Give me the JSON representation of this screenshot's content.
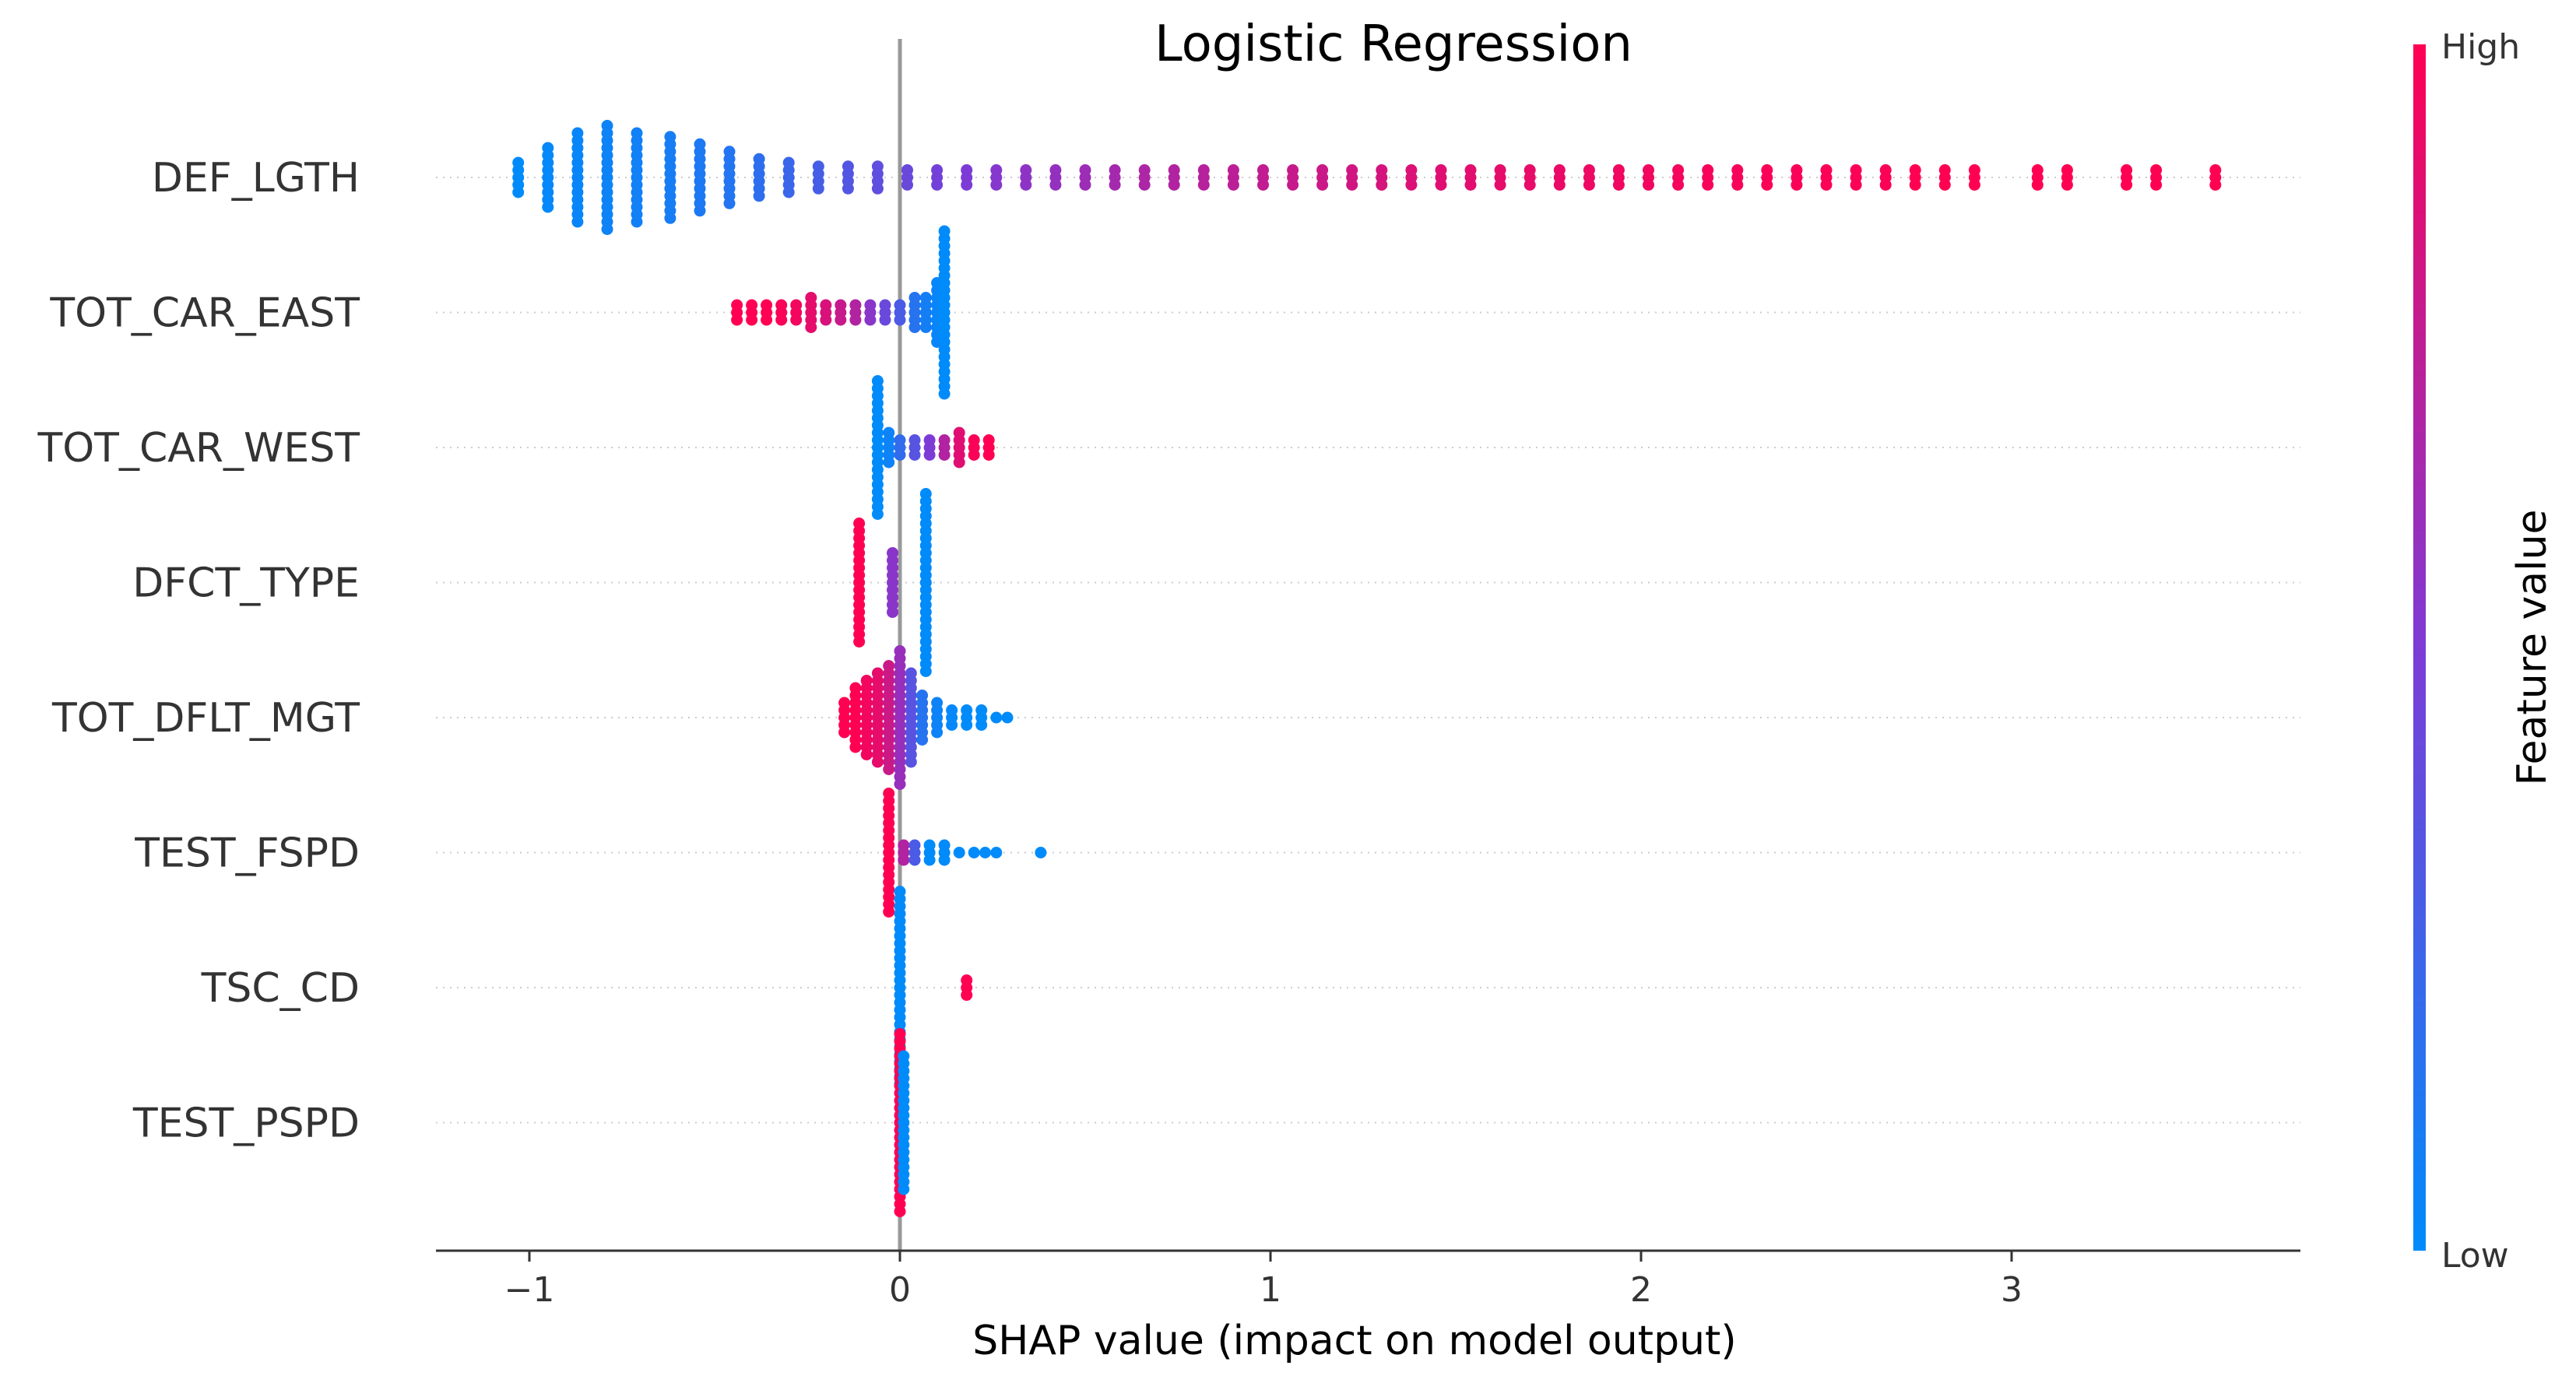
{
  "chart_data": {
    "type": "scatter",
    "subtype": "shap-beeswarm",
    "title": "Logistic Regression",
    "xlabel": "SHAP value (impact on model output)",
    "ylabel": "",
    "xlim": [
      -1.26,
      3.76
    ],
    "xticks": [
      -1,
      0,
      1,
      2,
      3
    ],
    "xtick_labels": [
      "−1",
      "0",
      "1",
      "2",
      "3"
    ],
    "zero_line": 0,
    "grid": "dotted horizontal per feature",
    "colorbar": {
      "label": "Feature value",
      "high_label": "High",
      "low_label": "Low",
      "low_color": "#008bfb",
      "mid_color": "#7d3bd6",
      "high_color": "#ff0052"
    },
    "features": [
      {
        "name": "DEF_LGTH",
        "points": [
          {
            "x": -1.03,
            "c": 0.0,
            "n": 5
          },
          {
            "x": -0.95,
            "c": 0.02,
            "n": 9
          },
          {
            "x": -0.87,
            "c": 0.03,
            "n": 13
          },
          {
            "x": -0.79,
            "c": 0.05,
            "n": 15
          },
          {
            "x": -0.71,
            "c": 0.07,
            "n": 13
          },
          {
            "x": -0.62,
            "c": 0.09,
            "n": 12
          },
          {
            "x": -0.54,
            "c": 0.11,
            "n": 10
          },
          {
            "x": -0.46,
            "c": 0.14,
            "n": 8
          },
          {
            "x": -0.38,
            "c": 0.18,
            "n": 6
          },
          {
            "x": -0.3,
            "c": 0.23,
            "n": 5
          },
          {
            "x": -0.22,
            "c": 0.28,
            "n": 4
          },
          {
            "x": -0.14,
            "c": 0.33,
            "n": 4
          },
          {
            "x": -0.06,
            "c": 0.38,
            "n": 4
          },
          {
            "x": 0.02,
            "c": 0.42,
            "n": 3
          },
          {
            "x": 0.1,
            "c": 0.46,
            "n": 3
          },
          {
            "x": 0.18,
            "c": 0.5,
            "n": 3
          },
          {
            "x": 0.26,
            "c": 0.53,
            "n": 3
          },
          {
            "x": 0.34,
            "c": 0.56,
            "n": 3
          },
          {
            "x": 0.42,
            "c": 0.59,
            "n": 3
          },
          {
            "x": 0.5,
            "c": 0.62,
            "n": 3
          },
          {
            "x": 0.58,
            "c": 0.65,
            "n": 3
          },
          {
            "x": 0.66,
            "c": 0.68,
            "n": 3
          },
          {
            "x": 0.74,
            "c": 0.7,
            "n": 3
          },
          {
            "x": 0.82,
            "c": 0.72,
            "n": 3
          },
          {
            "x": 0.9,
            "c": 0.74,
            "n": 3
          },
          {
            "x": 0.98,
            "c": 0.76,
            "n": 3
          },
          {
            "x": 1.06,
            "c": 0.78,
            "n": 3
          },
          {
            "x": 1.14,
            "c": 0.8,
            "n": 3
          },
          {
            "x": 1.22,
            "c": 0.82,
            "n": 3
          },
          {
            "x": 1.3,
            "c": 0.84,
            "n": 3
          },
          {
            "x": 1.38,
            "c": 0.86,
            "n": 3
          },
          {
            "x": 1.46,
            "c": 0.88,
            "n": 3
          },
          {
            "x": 1.54,
            "c": 0.89,
            "n": 3
          },
          {
            "x": 1.62,
            "c": 0.9,
            "n": 3
          },
          {
            "x": 1.7,
            "c": 0.91,
            "n": 3
          },
          {
            "x": 1.78,
            "c": 0.92,
            "n": 3
          },
          {
            "x": 1.86,
            "c": 0.93,
            "n": 3
          },
          {
            "x": 1.94,
            "c": 0.94,
            "n": 3
          },
          {
            "x": 2.02,
            "c": 0.95,
            "n": 3
          },
          {
            "x": 2.1,
            "c": 0.96,
            "n": 3
          },
          {
            "x": 2.18,
            "c": 0.97,
            "n": 3
          },
          {
            "x": 2.26,
            "c": 0.97,
            "n": 3
          },
          {
            "x": 2.34,
            "c": 0.98,
            "n": 3
          },
          {
            "x": 2.42,
            "c": 0.98,
            "n": 3
          },
          {
            "x": 2.5,
            "c": 0.99,
            "n": 3
          },
          {
            "x": 2.58,
            "c": 0.99,
            "n": 3
          },
          {
            "x": 2.66,
            "c": 0.99,
            "n": 3
          },
          {
            "x": 2.74,
            "c": 1.0,
            "n": 3
          },
          {
            "x": 2.82,
            "c": 1.0,
            "n": 3
          },
          {
            "x": 2.9,
            "c": 1.0,
            "n": 3
          },
          {
            "x": 3.07,
            "c": 1.0,
            "n": 3
          },
          {
            "x": 3.15,
            "c": 1.0,
            "n": 3
          },
          {
            "x": 3.31,
            "c": 1.0,
            "n": 3
          },
          {
            "x": 3.39,
            "c": 1.0,
            "n": 3
          },
          {
            "x": 3.55,
            "c": 1.0,
            "n": 3
          }
        ]
      },
      {
        "name": "TOT_CAR_EAST",
        "points": [
          {
            "x": -0.44,
            "c": 1.0,
            "n": 3
          },
          {
            "x": -0.4,
            "c": 1.0,
            "n": 3
          },
          {
            "x": -0.36,
            "c": 1.0,
            "n": 3
          },
          {
            "x": -0.32,
            "c": 0.98,
            "n": 3
          },
          {
            "x": -0.28,
            "c": 0.95,
            "n": 3
          },
          {
            "x": -0.24,
            "c": 0.9,
            "n": 5
          },
          {
            "x": -0.2,
            "c": 0.85,
            "n": 3
          },
          {
            "x": -0.16,
            "c": 0.78,
            "n": 3
          },
          {
            "x": -0.12,
            "c": 0.7,
            "n": 3
          },
          {
            "x": -0.08,
            "c": 0.55,
            "n": 3
          },
          {
            "x": -0.04,
            "c": 0.42,
            "n": 3
          },
          {
            "x": 0.0,
            "c": 0.3,
            "n": 3
          },
          {
            "x": 0.04,
            "c": 0.15,
            "n": 5
          },
          {
            "x": 0.07,
            "c": 0.08,
            "n": 5
          },
          {
            "x": 0.1,
            "c": 0.03,
            "n": 9
          },
          {
            "x": 0.12,
            "c": 0.0,
            "n": 23
          }
        ]
      },
      {
        "name": "TOT_CAR_WEST",
        "points": [
          {
            "x": -0.06,
            "c": 0.0,
            "n": 19
          },
          {
            "x": -0.03,
            "c": 0.05,
            "n": 5
          },
          {
            "x": 0.0,
            "c": 0.2,
            "n": 3
          },
          {
            "x": 0.04,
            "c": 0.35,
            "n": 3
          },
          {
            "x": 0.08,
            "c": 0.5,
            "n": 3
          },
          {
            "x": 0.12,
            "c": 0.7,
            "n": 3
          },
          {
            "x": 0.16,
            "c": 0.88,
            "n": 5
          },
          {
            "x": 0.2,
            "c": 0.98,
            "n": 3
          },
          {
            "x": 0.24,
            "c": 1.0,
            "n": 3
          }
        ]
      },
      {
        "name": "DFCT_TYPE",
        "points": [
          {
            "x": -0.11,
            "c": 1.0,
            "n": 17
          },
          {
            "x": -0.02,
            "c": 0.55,
            "n": 9
          },
          {
            "x": 0.07,
            "c": 0.0,
            "n": 25
          }
        ]
      },
      {
        "name": "TOT_DFLT_MGT",
        "points": [
          {
            "x": -0.15,
            "c": 1.0,
            "n": 5
          },
          {
            "x": -0.12,
            "c": 1.0,
            "n": 9
          },
          {
            "x": -0.09,
            "c": 0.95,
            "n": 11
          },
          {
            "x": -0.06,
            "c": 0.9,
            "n": 13
          },
          {
            "x": -0.03,
            "c": 0.8,
            "n": 15
          },
          {
            "x": 0.0,
            "c": 0.6,
            "n": 19
          },
          {
            "x": 0.03,
            "c": 0.35,
            "n": 13
          },
          {
            "x": 0.06,
            "c": 0.15,
            "n": 7
          },
          {
            "x": 0.1,
            "c": 0.05,
            "n": 5
          },
          {
            "x": 0.14,
            "c": 0.02,
            "n": 3
          },
          {
            "x": 0.18,
            "c": 0.0,
            "n": 3
          },
          {
            "x": 0.22,
            "c": 0.0,
            "n": 3
          },
          {
            "x": 0.26,
            "c": 0.0,
            "n": 1
          },
          {
            "x": 0.29,
            "c": 0.0,
            "n": 1
          }
        ]
      },
      {
        "name": "TEST_FSPD",
        "points": [
          {
            "x": -0.03,
            "c": 1.0,
            "n": 17
          },
          {
            "x": 0.01,
            "c": 0.7,
            "n": 3
          },
          {
            "x": 0.04,
            "c": 0.3,
            "n": 3
          },
          {
            "x": 0.08,
            "c": 0.0,
            "n": 3
          },
          {
            "x": 0.12,
            "c": 0.0,
            "n": 3
          },
          {
            "x": 0.16,
            "c": 0.0,
            "n": 1
          },
          {
            "x": 0.2,
            "c": 0.0,
            "n": 1
          },
          {
            "x": 0.23,
            "c": 0.0,
            "n": 1
          },
          {
            "x": 0.26,
            "c": 0.0,
            "n": 1
          },
          {
            "x": 0.38,
            "c": 0.0,
            "n": 1
          }
        ]
      },
      {
        "name": "TSC_CD",
        "points": [
          {
            "x": 0.0,
            "c": 0.0,
            "n": 27
          },
          {
            "x": 0.18,
            "c": 1.0,
            "n": 3
          }
        ]
      },
      {
        "name": "TEST_PSPD",
        "points": [
          {
            "x": 0.0,
            "c": 1.0,
            "n": 25
          },
          {
            "x": 0.01,
            "c": 0.0,
            "n": 19
          }
        ]
      }
    ]
  }
}
